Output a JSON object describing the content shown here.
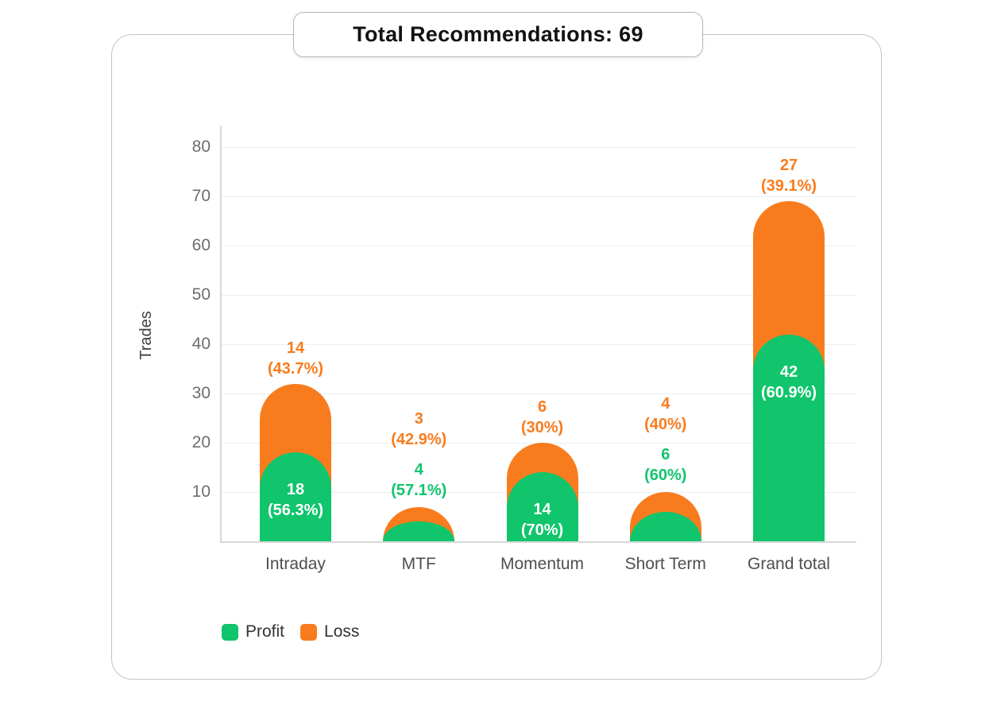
{
  "title": "Total Recommendations: 69",
  "chart_data": {
    "type": "bar",
    "stacked": true,
    "title": "Total Recommendations: 69",
    "xlabel": "",
    "ylabel": "Trades",
    "ylim": [
      0,
      84
    ],
    "yticks": [
      10,
      20,
      30,
      40,
      50,
      60,
      70,
      80
    ],
    "grid": true,
    "legend_position": "bottom-left",
    "categories": [
      "Intraday",
      "MTF",
      "Momentum",
      "Short Term",
      "Grand total"
    ],
    "series": [
      {
        "name": "Profit",
        "color": "#10c56c",
        "values": [
          18,
          4,
          14,
          6,
          42
        ],
        "pct_labels": [
          "(56.3%)",
          "(57.1%)",
          "(70%)",
          "(60%)",
          "(60.9%)"
        ]
      },
      {
        "name": "Loss",
        "color": "#f87c1e",
        "values": [
          14,
          3,
          6,
          4,
          27
        ],
        "pct_labels": [
          "(43.7%)",
          "(42.9%)",
          "(30%)",
          "(40%)",
          "(39.1%)"
        ]
      }
    ],
    "totals": [
      32,
      7,
      20,
      10,
      69
    ]
  },
  "colors": {
    "profit": "#10c56c",
    "loss": "#f87c1e",
    "inside_label": "#ffffff",
    "gridline": "#ededed",
    "axis_line": "#d8d8d8",
    "tick_text": "#6d6d6d",
    "category_text": "#4f4f4f"
  },
  "legend": {
    "items": [
      {
        "label": "Profit",
        "color": "#10c56c"
      },
      {
        "label": "Loss",
        "color": "#f87c1e"
      }
    ]
  }
}
